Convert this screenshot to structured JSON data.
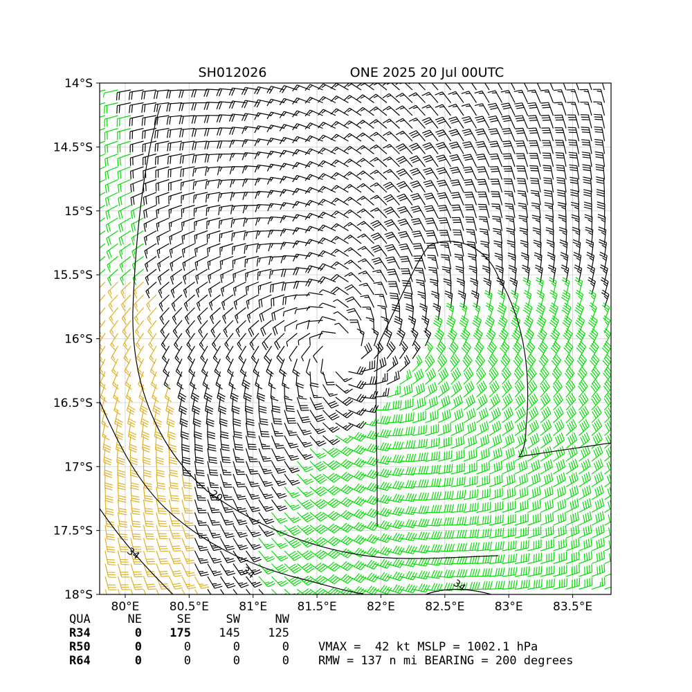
{
  "header": {
    "storm_id": "SH012026",
    "storm_info": "ONE 2025 20 Jul 00UTC"
  },
  "map": {
    "lon_range": [
      79.8,
      83.8
    ],
    "lat_range": [
      -18.0,
      -14.0
    ],
    "lon_ticks": [
      {
        "value": 80.0,
        "label": "80°E"
      },
      {
        "value": 80.5,
        "label": "80.5°E"
      },
      {
        "value": 81.0,
        "label": "81°E"
      },
      {
        "value": 81.5,
        "label": "81.5°E"
      },
      {
        "value": 82.0,
        "label": "82°E"
      },
      {
        "value": 82.5,
        "label": "82.5°E"
      },
      {
        "value": 83.0,
        "label": "83°E"
      },
      {
        "value": 83.5,
        "label": "83.5°E"
      }
    ],
    "lat_ticks": [
      {
        "value": -14.0,
        "label": "14°S"
      },
      {
        "value": -14.5,
        "label": "14.5°S"
      },
      {
        "value": -15.0,
        "label": "15°S"
      },
      {
        "value": -15.5,
        "label": "15.5°S"
      },
      {
        "value": -16.0,
        "label": "16°S"
      },
      {
        "value": -16.5,
        "label": "16.5°S"
      },
      {
        "value": -17.0,
        "label": "17°S"
      },
      {
        "value": -17.5,
        "label": "17.5°S"
      },
      {
        "value": -18.0,
        "label": "18°S"
      }
    ],
    "grid": true,
    "storm_center": {
      "lon": 81.7,
      "lat": -16.1
    },
    "contour_labels": [
      {
        "text": "20",
        "lon": 80.7,
        "lat": -17.25
      },
      {
        "text": "34",
        "lon": 80.05,
        "lat": -17.7
      },
      {
        "text": "34",
        "lon": 80.95,
        "lat": -17.85
      },
      {
        "text": "34",
        "lon": 82.6,
        "lat": -17.95
      }
    ],
    "colors": {
      "weak_barbs": "#000000",
      "r34_barbs": "#00dd00",
      "r50_barbs": "#e0b020",
      "contour": "#000000"
    }
  },
  "table": {
    "header": [
      "QUA",
      "NE",
      "SE",
      "SW",
      "NW"
    ],
    "rows": [
      {
        "label": "R34",
        "values": [
          "0",
          "175",
          "145",
          "125"
        ]
      },
      {
        "label": "R50",
        "values": [
          "0",
          "0",
          "0",
          "0"
        ]
      },
      {
        "label": "R64",
        "values": [
          "0",
          "0",
          "0",
          "0"
        ]
      }
    ]
  },
  "summary": {
    "line1": "VMAX =  42 kt MSLP = 1002.1 hPa",
    "line2": "RMW = 137 n mi BEARING = 200 degrees"
  }
}
